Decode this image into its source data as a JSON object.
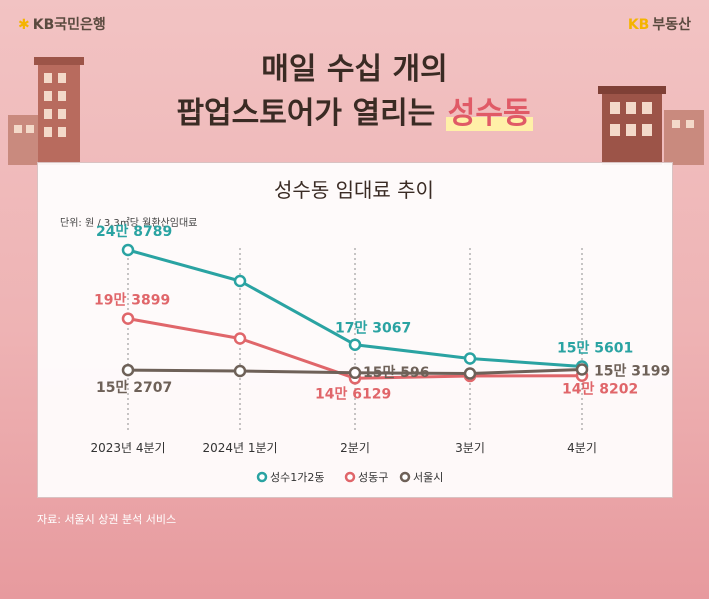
{
  "header": {
    "bank_logo": "KB국민은행",
    "realestate_kb": "KB",
    "realestate_name": "부동산"
  },
  "headline": {
    "line1": "매일 수십 개의",
    "line2_prefix": "팝업스토어가 열리는",
    "line2_highlight": "성수동"
  },
  "footer": {
    "source": "자료: 서울시 상권 분석 서비스"
  },
  "colors": {
    "series1": "#2aa3a2",
    "series2": "#e0666a",
    "series3": "#6e6158"
  },
  "chart_data": {
    "type": "line",
    "title": "성수동 임대료 추이",
    "unit": "단위: 원 / 3.3㎡당 월환산임대료",
    "categories": [
      "2023년 4분기",
      "2024년 1분기",
      "2분기",
      "3분기",
      "4분기"
    ],
    "series": [
      {
        "name": "성수1가2동",
        "values": [
          248789,
          224000,
          173067,
          162000,
          155601
        ]
      },
      {
        "name": "성동구",
        "values": [
          193899,
          178000,
          146129,
          148000,
          148202
        ]
      },
      {
        "name": "서울시",
        "values": [
          152707,
          152000,
          150596,
          150000,
          153199
        ]
      }
    ],
    "data_labels": {
      "s1_first": "24만 8789",
      "s1_q2": "17만 3067",
      "s1_q4": "15만 5601",
      "s2_first": "19만 3899",
      "s2_q2": "14만 6129",
      "s2_q4": "14만 8202",
      "s3_first": "15만 2707",
      "s3_q2": "15만 596",
      "s3_q4": "15만 3199"
    },
    "ylim": [
      100000,
      260000
    ],
    "legend_position": "bottom"
  }
}
